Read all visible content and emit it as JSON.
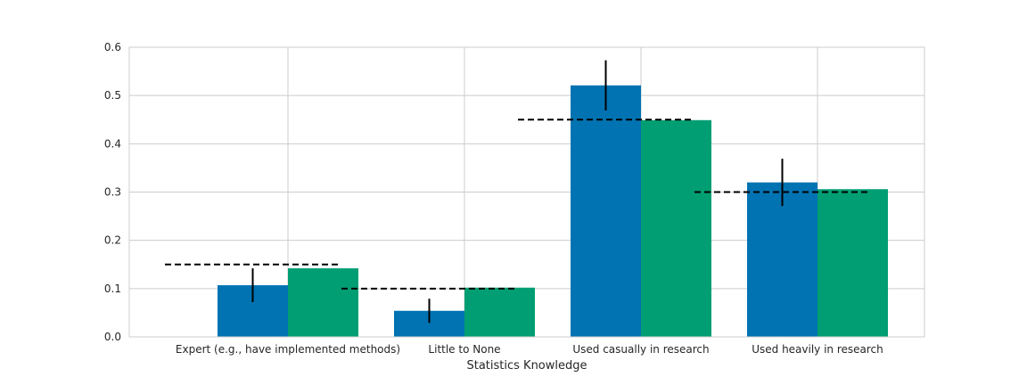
{
  "chart_data": {
    "type": "bar",
    "xlabel": "Statistics Knowledge",
    "ylabel": "",
    "title": "",
    "categories": [
      "Expert (e.g., have implemented methods)",
      "Little to None",
      "Used casually in research",
      "Used heavily in research"
    ],
    "series": [
      {
        "color": "#0173b2",
        "values": [
          0.107,
          0.054,
          0.521,
          0.32
        ],
        "error": [
          0.035,
          0.025,
          0.052,
          0.049
        ]
      },
      {
        "color": "#029e73",
        "values": [
          0.142,
          0.102,
          0.449,
          0.306
        ],
        "error": null
      }
    ],
    "reference_lines": [
      0.15,
      0.1,
      0.45,
      0.3
    ],
    "ylim": [
      0,
      0.6
    ],
    "yticks": [
      "0.0",
      "0.1",
      "0.2",
      "0.3",
      "0.4",
      "0.5",
      "0.6"
    ],
    "grid": true,
    "legend": "none"
  }
}
